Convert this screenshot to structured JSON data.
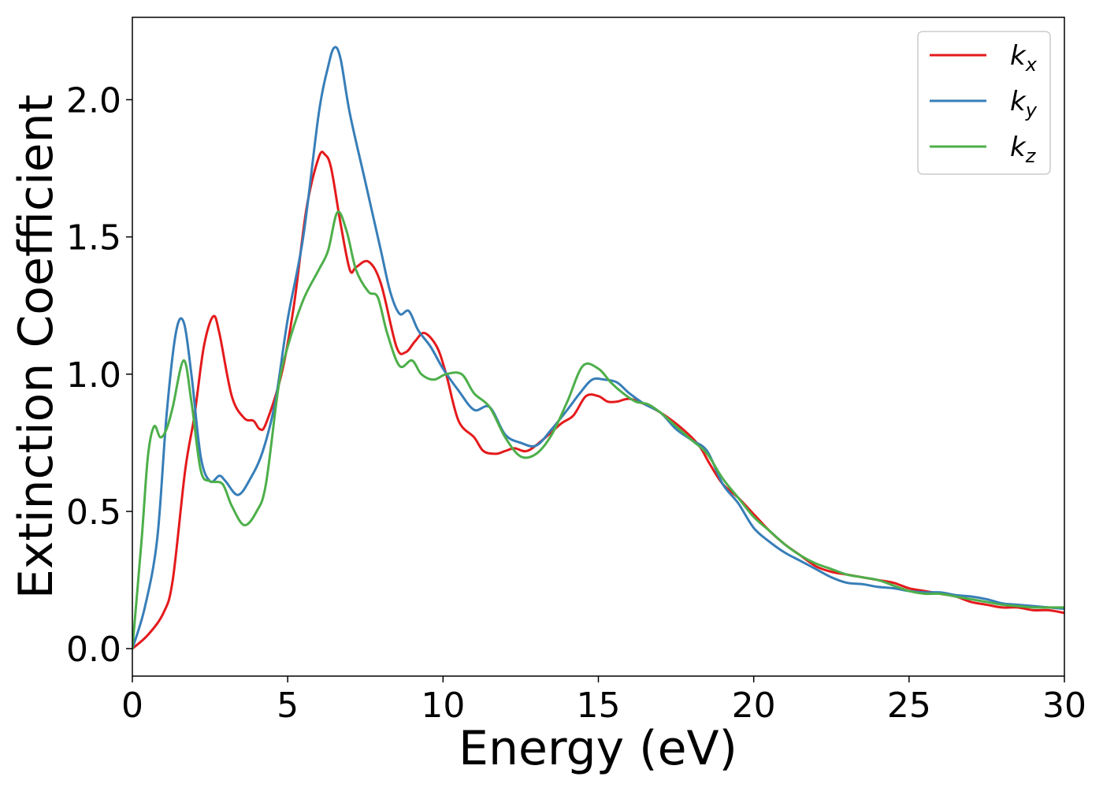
{
  "chart_data": {
    "type": "line",
    "xlabel": "Energy (eV)",
    "ylabel": "Extinction Coefficient",
    "xlim": [
      0,
      30
    ],
    "ylim": [
      -0.1,
      2.3
    ],
    "xticks": [
      0,
      5,
      10,
      15,
      20,
      25,
      30
    ],
    "xtick_labels": [
      "0",
      "5",
      "10",
      "15",
      "20",
      "25",
      "30"
    ],
    "yticks": [
      0.0,
      0.5,
      1.0,
      1.5,
      2.0
    ],
    "ytick_labels": [
      "0.0",
      "0.5",
      "1.0",
      "1.5",
      "2.0"
    ],
    "grid": false,
    "legend_position": "top-right",
    "series": [
      {
        "name": "kx",
        "name_base": "k",
        "name_sub": "x",
        "color": "#e41a1c",
        "x": [
          0,
          0.5,
          1.0,
          1.3,
          1.7,
          2.0,
          2.3,
          2.6,
          2.8,
          3.2,
          3.6,
          3.9,
          4.1,
          4.3,
          4.8,
          5.2,
          5.6,
          6.0,
          6.2,
          6.4,
          6.7,
          7.0,
          7.2,
          7.6,
          8.0,
          8.5,
          8.8,
          9.1,
          9.4,
          9.8,
          10.1,
          10.5,
          11.0,
          11.3,
          11.7,
          12.0,
          12.3,
          12.7,
          13.2,
          13.8,
          14.2,
          14.6,
          15.0,
          15.3,
          15.6,
          16.0,
          16.5,
          17.0,
          17.5,
          18.0,
          18.3,
          18.6,
          19.0,
          19.5,
          20.0,
          20.5,
          21.0,
          21.5,
          22.0,
          22.5,
          23.0,
          23.5,
          24.0,
          24.5,
          25.0,
          25.5,
          26.0,
          26.5,
          27.0,
          27.5,
          28.0,
          28.5,
          29.0,
          29.5,
          30.0
        ],
        "values": [
          0.0,
          0.05,
          0.13,
          0.25,
          0.65,
          0.85,
          1.1,
          1.21,
          1.15,
          0.92,
          0.84,
          0.83,
          0.8,
          0.82,
          1.0,
          1.25,
          1.6,
          1.79,
          1.8,
          1.75,
          1.55,
          1.38,
          1.39,
          1.41,
          1.33,
          1.1,
          1.08,
          1.12,
          1.15,
          1.1,
          1.0,
          0.83,
          0.77,
          0.72,
          0.71,
          0.72,
          0.73,
          0.72,
          0.76,
          0.82,
          0.85,
          0.92,
          0.92,
          0.9,
          0.9,
          0.91,
          0.89,
          0.86,
          0.82,
          0.77,
          0.73,
          0.67,
          0.6,
          0.55,
          0.49,
          0.43,
          0.38,
          0.34,
          0.3,
          0.28,
          0.27,
          0.26,
          0.25,
          0.24,
          0.22,
          0.21,
          0.2,
          0.19,
          0.17,
          0.16,
          0.15,
          0.15,
          0.14,
          0.14,
          0.13
        ]
      },
      {
        "name": "ky",
        "name_base": "k",
        "name_sub": "y",
        "color": "#377eb8",
        "x": [
          0,
          0.4,
          0.8,
          1.1,
          1.4,
          1.65,
          1.9,
          2.2,
          2.5,
          2.8,
          3.0,
          3.4,
          3.8,
          4.2,
          4.6,
          5.0,
          5.5,
          6.0,
          6.3,
          6.5,
          6.7,
          7.0,
          7.5,
          8.0,
          8.3,
          8.6,
          8.9,
          9.2,
          9.6,
          10.0,
          10.5,
          11.0,
          11.5,
          12.0,
          12.5,
          13.0,
          13.5,
          14.0,
          14.4,
          14.8,
          15.2,
          15.6,
          16.0,
          16.5,
          17.0,
          17.5,
          18.0,
          18.5,
          19.0,
          19.5,
          20.0,
          20.5,
          21.0,
          21.5,
          22.0,
          22.5,
          23.0,
          23.5,
          24.0,
          24.5,
          25.0,
          25.5,
          26.0,
          26.5,
          27.0,
          27.5,
          28.0,
          28.5,
          29.0,
          29.5,
          30.0
        ],
        "values": [
          0.0,
          0.15,
          0.4,
          0.85,
          1.15,
          1.19,
          1.0,
          0.7,
          0.61,
          0.63,
          0.61,
          0.56,
          0.62,
          0.72,
          0.9,
          1.2,
          1.5,
          1.95,
          2.12,
          2.19,
          2.15,
          1.95,
          1.7,
          1.45,
          1.3,
          1.22,
          1.23,
          1.16,
          1.1,
          1.02,
          0.94,
          0.87,
          0.88,
          0.78,
          0.75,
          0.74,
          0.8,
          0.87,
          0.93,
          0.98,
          0.98,
          0.97,
          0.93,
          0.89,
          0.86,
          0.8,
          0.76,
          0.72,
          0.6,
          0.53,
          0.44,
          0.39,
          0.35,
          0.32,
          0.29,
          0.26,
          0.24,
          0.235,
          0.225,
          0.22,
          0.21,
          0.205,
          0.205,
          0.195,
          0.19,
          0.18,
          0.165,
          0.16,
          0.155,
          0.15,
          0.145
        ]
      },
      {
        "name": "kz",
        "name_base": "k",
        "name_sub": "z",
        "color": "#4daf4a",
        "x": [
          0,
          0.3,
          0.5,
          0.7,
          0.9,
          1.1,
          1.3,
          1.65,
          1.9,
          2.2,
          2.5,
          2.9,
          3.2,
          3.6,
          4.0,
          4.3,
          4.7,
          5.0,
          5.5,
          6.0,
          6.3,
          6.6,
          6.9,
          7.2,
          7.6,
          7.9,
          8.2,
          8.6,
          9.0,
          9.3,
          9.7,
          10.1,
          10.6,
          11.0,
          11.5,
          12.0,
          12.5,
          13.0,
          13.5,
          14.0,
          14.5,
          15.0,
          15.4,
          15.8,
          16.2,
          16.6,
          17.0,
          17.5,
          18.0,
          18.5,
          19.0,
          19.5,
          20.0,
          20.5,
          21.0,
          21.5,
          22.0,
          22.5,
          23.0,
          23.5,
          24.0,
          24.5,
          25.0,
          25.5,
          26.0,
          26.5,
          27.0,
          27.5,
          28.0,
          28.5,
          29.0,
          29.5,
          30.0
        ],
        "values": [
          0.0,
          0.4,
          0.7,
          0.81,
          0.77,
          0.8,
          0.88,
          1.05,
          0.9,
          0.65,
          0.61,
          0.6,
          0.52,
          0.45,
          0.5,
          0.6,
          0.95,
          1.1,
          1.27,
          1.38,
          1.45,
          1.59,
          1.52,
          1.38,
          1.3,
          1.28,
          1.15,
          1.03,
          1.05,
          1.0,
          0.98,
          1.0,
          1.0,
          0.93,
          0.88,
          0.77,
          0.7,
          0.71,
          0.78,
          0.9,
          1.03,
          1.02,
          0.97,
          0.93,
          0.9,
          0.89,
          0.86,
          0.81,
          0.76,
          0.71,
          0.62,
          0.55,
          0.48,
          0.43,
          0.38,
          0.34,
          0.31,
          0.29,
          0.27,
          0.26,
          0.25,
          0.23,
          0.21,
          0.2,
          0.2,
          0.19,
          0.18,
          0.17,
          0.16,
          0.155,
          0.15,
          0.15,
          0.15
        ]
      }
    ]
  }
}
